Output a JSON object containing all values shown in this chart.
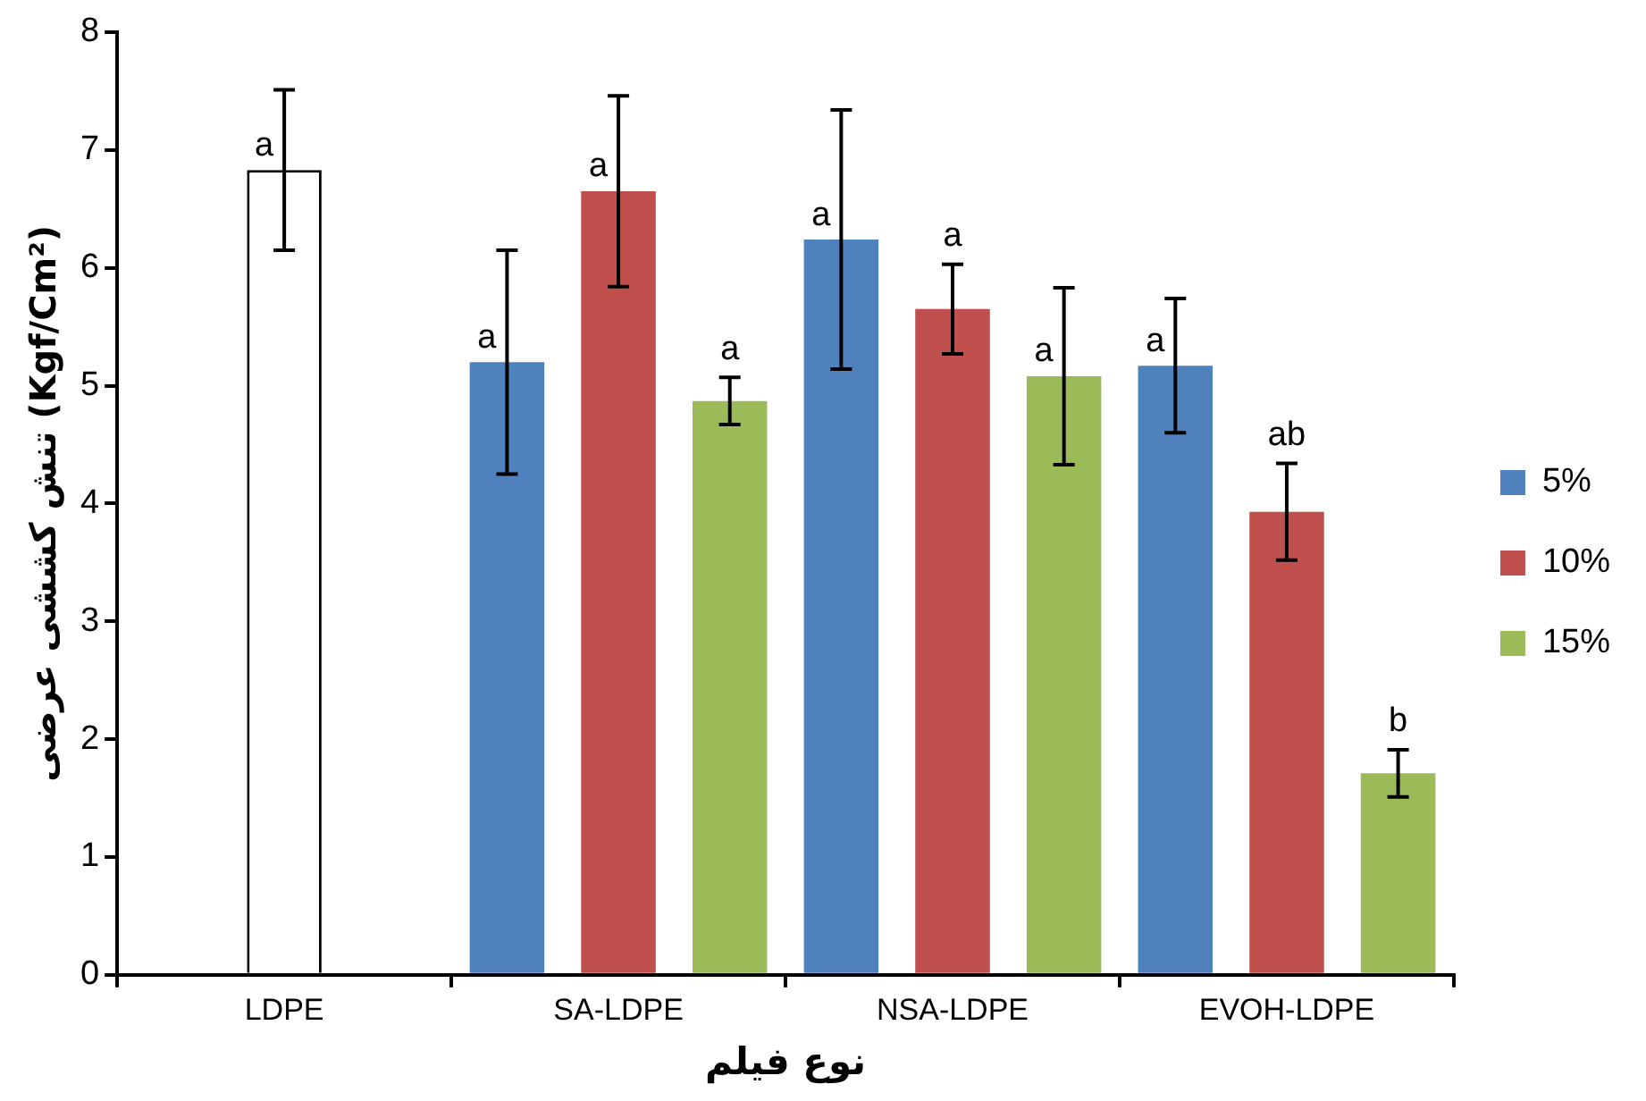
{
  "chart_data": {
    "type": "bar",
    "xlabel": "نوع فیلم",
    "ylabel": "تنش کششی عرضی (Kgf/Cm²)",
    "categories": [
      "LDPE",
      "SA-LDPE",
      "NSA-LDPE",
      "EVOH-LDPE"
    ],
    "series": [
      {
        "name": "5%",
        "color": "#4f81bd",
        "values": [
          0,
          5.2,
          6.24,
          5.17
        ],
        "errors": [
          null,
          0.95,
          1.1,
          0.57
        ],
        "value_labels": [
          null,
          "a",
          "a",
          "a"
        ]
      },
      {
        "name": "10%",
        "color": "#c0504d",
        "colors": [
          "#ffffff",
          "#c0504d",
          "#c0504d",
          "#c0504d"
        ],
        "values": [
          6.83,
          6.65,
          5.65,
          3.93
        ],
        "errors": [
          0.68,
          0.81,
          0.38,
          0.41
        ],
        "value_labels": [
          "a",
          "a",
          "a",
          "ab"
        ]
      },
      {
        "name": "15%",
        "color": "#9bbb59",
        "values": [
          0,
          4.87,
          5.08,
          1.71
        ],
        "errors": [
          null,
          0.2,
          0.75,
          0.2
        ],
        "value_labels": [
          null,
          "a",
          "a",
          "b"
        ]
      }
    ],
    "ylim": [
      0,
      8
    ],
    "yticks": [
      0,
      1,
      2,
      3,
      4,
      5,
      6,
      7,
      8
    ],
    "grid": false,
    "legend": "right"
  }
}
